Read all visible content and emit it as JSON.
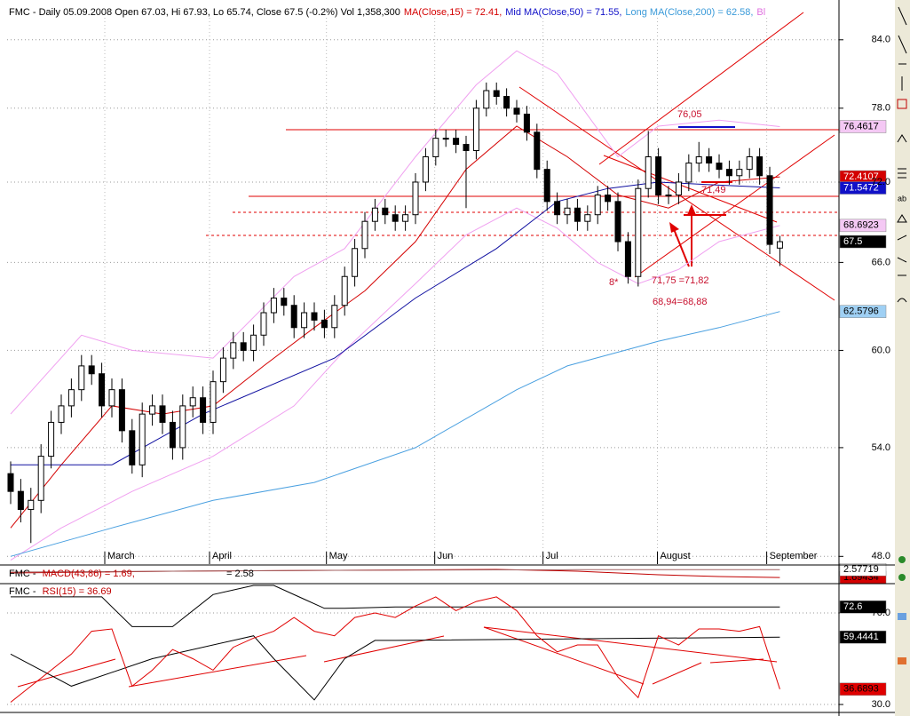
{
  "chart_data": [
    {
      "type": "candlestick",
      "title_parts": [
        {
          "text": "FMC - Daily 05.09.2008 Open 67.03, Hi 67.93, Lo 65.74, Close 67.5 (-0.2%) Vol 1,358,300",
          "color": "#000000"
        },
        {
          "text": "MA(Close,15) = 72.41,",
          "color": "#d40000"
        },
        {
          "text": "Mid MA(Close,50) = 71.55,",
          "color": "#1010c8"
        },
        {
          "text": "Long MA(Close,200) = 62.58,",
          "color": "#3a9ad9"
        },
        {
          "text": "Bl",
          "color": "#e070e0"
        }
      ],
      "log": true,
      "grid": true,
      "xlim": [
        -0.35,
        81.84
      ],
      "ylim": [
        47.6,
        87.7
      ],
      "yticks": [
        {
          "value": 48,
          "label": "48.0"
        },
        {
          "value": 54,
          "label": "54.0"
        },
        {
          "value": 60,
          "label": "60.0"
        },
        {
          "value": 66,
          "label": "66.0"
        },
        {
          "value": 72,
          "label": "72.0"
        },
        {
          "value": 78,
          "label": "78.0"
        },
        {
          "value": 84,
          "label": "84.0"
        }
      ],
      "xticks": [
        {
          "value": 9.3,
          "label": "March"
        },
        {
          "value": 19.65,
          "label": "April"
        },
        {
          "value": 31.2,
          "label": "May"
        },
        {
          "value": 41.9,
          "label": "Jun"
        },
        {
          "value": 52.6,
          "label": "Jul"
        },
        {
          "value": 63.9,
          "label": "August"
        },
        {
          "value": 74.7,
          "label": "September"
        }
      ],
      "candles": {
        "up_color": "#ffffff",
        "down_color": "#000000",
        "label_bg": "#000000",
        "label_fg": "#ffffff",
        "open": [
          52.5,
          51.5,
          50.5,
          51.0,
          53.5,
          55.5,
          56.5,
          57.5,
          59.0,
          58.5,
          56.5,
          57.5,
          55.0,
          53.0,
          56.0,
          56.5,
          55.5,
          54.0,
          56.5,
          57.0,
          55.5,
          58.0,
          59.5,
          60.5,
          60.0,
          61.0,
          62.5,
          63.5,
          63.0,
          61.5,
          62.5,
          62.0,
          61.5,
          63.0,
          65.0,
          67.0,
          69.0,
          70.0,
          69.5,
          69.0,
          69.5,
          72.0,
          74.0,
          75.5,
          75.5,
          75.0,
          74.5,
          78.0,
          79.5,
          79.0,
          78.0,
          77.5,
          76.0,
          73.0,
          70.5,
          69.5,
          70.0,
          69.0,
          69.5,
          71.0,
          70.5,
          67.5,
          65.0,
          71.5,
          74.0,
          71.0,
          71.0,
          72.0,
          73.5,
          74.0,
          73.5,
          73.0,
          72.5,
          73.0,
          74.0,
          72.5,
          67.03
        ],
        "high": [
          53.2,
          52.2,
          51.7,
          54.2,
          56.2,
          57.2,
          58.2,
          59.7,
          59.7,
          59.2,
          58.2,
          58.2,
          55.7,
          56.7,
          57.2,
          57.2,
          56.2,
          57.2,
          57.7,
          57.7,
          58.7,
          60.2,
          61.2,
          61.2,
          61.7,
          63.2,
          64.2,
          64.2,
          63.7,
          63.2,
          63.2,
          62.7,
          63.7,
          65.7,
          67.7,
          69.7,
          70.7,
          70.7,
          70.2,
          70.2,
          72.7,
          74.7,
          76.2,
          76.2,
          76.2,
          75.7,
          78.7,
          80.2,
          80.2,
          79.7,
          78.7,
          78.2,
          76.7,
          73.7,
          71.2,
          70.7,
          70.7,
          70.2,
          71.7,
          71.7,
          71.2,
          68.2,
          72.2,
          76.1,
          74.7,
          71.7,
          72.7,
          74.2,
          75.2,
          74.7,
          74.2,
          73.7,
          73.7,
          74.7,
          74.7,
          73.2,
          67.93
        ],
        "low": [
          50.8,
          49.8,
          48.7,
          50.3,
          52.8,
          54.8,
          55.8,
          56.8,
          57.8,
          55.8,
          55.8,
          54.3,
          52.5,
          52.3,
          55.3,
          54.8,
          53.3,
          53.3,
          55.8,
          54.8,
          54.8,
          57.3,
          58.8,
          59.3,
          59.3,
          60.3,
          61.8,
          62.3,
          60.8,
          60.8,
          61.3,
          60.8,
          60.8,
          62.3,
          64.3,
          66.3,
          68.3,
          68.8,
          68.3,
          68.3,
          68.8,
          71.3,
          73.3,
          74.8,
          74.3,
          70.0,
          73.8,
          77.3,
          78.3,
          77.3,
          76.8,
          75.3,
          72.3,
          69.8,
          68.8,
          68.8,
          68.3,
          68.3,
          68.8,
          69.8,
          66.8,
          64.5,
          64.3,
          70.8,
          70.3,
          70.3,
          70.3,
          71.3,
          72.8,
          72.8,
          72.3,
          71.8,
          71.8,
          72.3,
          71.8,
          66.6,
          65.74
        ],
        "close": [
          51.5,
          50.5,
          51.0,
          53.5,
          55.5,
          56.5,
          57.5,
          59.0,
          58.5,
          56.5,
          57.5,
          55.0,
          53.0,
          56.0,
          56.5,
          55.5,
          54.0,
          56.5,
          57.0,
          55.5,
          58.0,
          59.5,
          60.5,
          60.0,
          61.0,
          62.5,
          63.5,
          63.0,
          61.5,
          62.5,
          62.0,
          61.5,
          63.0,
          65.0,
          67.0,
          69.0,
          70.0,
          69.5,
          69.0,
          69.5,
          72.0,
          74.0,
          75.5,
          75.5,
          75.0,
          74.5,
          78.0,
          79.5,
          79.0,
          78.0,
          77.5,
          76.0,
          73.0,
          70.5,
          69.5,
          70.0,
          69.0,
          69.5,
          71.0,
          70.5,
          67.5,
          65.0,
          71.5,
          74.0,
          71.0,
          71.0,
          72.0,
          73.5,
          74.0,
          73.5,
          73.0,
          72.5,
          73.0,
          74.0,
          72.5,
          67.3,
          67.5
        ]
      },
      "series": [
        {
          "color": "#f0a0f0",
          "label_bg": "#f4c8f4",
          "label_fg": "#000000",
          "x": [
            0,
            7,
            12,
            20,
            28,
            33,
            40,
            46,
            50,
            54,
            60,
            64,
            70,
            76
          ],
          "values": [
            56,
            61,
            60,
            59.5,
            65,
            67,
            74,
            80,
            83,
            81,
            74,
            76.5,
            77,
            76.4617
          ]
        },
        {
          "color": "#f0a0f0",
          "label_bg": "#f4c8f4",
          "label_fg": "#000000",
          "x": [
            0,
            5,
            12,
            20,
            28,
            33,
            40,
            45,
            50,
            54,
            58,
            62,
            66,
            70,
            76
          ],
          "values": [
            47.8,
            49.5,
            51.5,
            53.5,
            56.5,
            60,
            64.5,
            68,
            70,
            68.5,
            66,
            64.5,
            65.5,
            67.5,
            68.6923
          ]
        },
        {
          "color": "#d40000",
          "label_bg": "#d40000",
          "label_fg": "#ffffff",
          "x": [
            0,
            5,
            10,
            15,
            20,
            25,
            30,
            35,
            40,
            45,
            50,
            55,
            60,
            65,
            70,
            76
          ],
          "values": [
            49.5,
            53,
            56.5,
            56,
            56.5,
            59,
            61.5,
            64,
            67.5,
            73,
            76.5,
            74,
            71,
            70,
            72,
            72.4107
          ]
        },
        {
          "color": "#1010a0",
          "label_bg": "#1010c8",
          "label_fg": "#ffffff",
          "x": [
            0,
            10,
            19,
            32,
            40,
            48,
            54,
            59,
            64,
            69,
            76
          ],
          "values": [
            53,
            53,
            56,
            59.5,
            63.5,
            67,
            70.5,
            71.5,
            72,
            71.8,
            71.5472
          ]
        },
        {
          "color": "#4aa0e0",
          "label_bg": "#9fd0f4",
          "label_fg": "#000000",
          "x": [
            0,
            10,
            20,
            30,
            40,
            50,
            55,
            64,
            70,
            76
          ],
          "values": [
            48,
            49.5,
            51,
            52,
            54,
            57.5,
            59,
            60.6,
            61.5,
            62.5796
          ]
        }
      ],
      "annotations": [
        "76,05",
        "71,49",
        "8*",
        "71,75 =71,82",
        "68,94=68,88"
      ]
    },
    {
      "type": "line",
      "title_parts": [
        {
          "text": "FMC - ",
          "color": "#000000"
        },
        {
          "text": "MACD(43,86) = 1.69,",
          "color": "#c00000"
        },
        {
          "text": "= 2.58",
          "color": "#000000"
        }
      ],
      "xlim": [
        -0.35,
        81.84
      ],
      "ylim": [
        1.0,
        3.0
      ],
      "series": [
        {
          "color": "#c00000",
          "label_bg": "#d40000",
          "label_fg": "#000000",
          "x": [
            0,
            8,
            16,
            24,
            32,
            40,
            48,
            56,
            64,
            70,
            76
          ],
          "values": [
            2.2,
            2.3,
            2.4,
            2.45,
            2.5,
            2.55,
            2.6,
            2.4,
            2.0,
            1.8,
            1.69434
          ]
        },
        {
          "color": "#a06060",
          "label_bg": "#ffffff",
          "label_fg": "#000000",
          "x": [
            0,
            8,
            16,
            24,
            32,
            40,
            48,
            56,
            64,
            70,
            76
          ],
          "values": [
            2.3,
            2.35,
            2.4,
            2.45,
            2.5,
            2.52,
            2.55,
            2.57,
            2.58,
            2.58,
            2.57719
          ]
        }
      ]
    },
    {
      "type": "line",
      "title_parts": [
        {
          "text": "FMC - ",
          "color": "#000000"
        },
        {
          "text": "RSI(15) = 36.69",
          "color": "#c00000"
        }
      ],
      "xlim": [
        -0.35,
        81.84
      ],
      "ylim": [
        27.3,
        82.4
      ],
      "yticks": [
        {
          "value": 30,
          "label": "30.0"
        },
        {
          "value": 70,
          "label": "70.0"
        }
      ],
      "series": [
        {
          "color": "#000000",
          "label_bg": "#000000",
          "label_fg": "#ffffff",
          "x": [
            0,
            9,
            12,
            16,
            20,
            24,
            26,
            29,
            31,
            33,
            38,
            76
          ],
          "values": [
            77,
            77,
            64,
            64,
            78,
            82,
            82,
            76,
            72,
            72,
            72.6,
            72.6
          ]
        },
        {
          "color": "#000000",
          "label_bg": "#000000",
          "label_fg": "#ffffff",
          "x": [
            0,
            6,
            14,
            24,
            26,
            30,
            33,
            36,
            38,
            76
          ],
          "values": [
            52,
            38,
            50,
            60,
            50,
            32,
            50,
            58,
            58,
            59.4441
          ]
        },
        {
          "color": "#e00000",
          "label_bg": "#e00000",
          "label_fg": "#000000",
          "x": [
            0,
            2,
            4,
            6,
            8,
            10,
            12,
            14,
            16,
            18,
            20,
            22,
            24,
            26,
            28,
            30,
            32,
            34,
            36,
            38,
            40,
            42,
            44,
            46,
            48,
            50,
            52,
            54,
            56,
            58,
            60,
            62,
            64,
            66,
            68,
            70,
            72,
            74,
            76
          ],
          "values": [
            31,
            38,
            45,
            52,
            62,
            63,
            38,
            45,
            54,
            50,
            45,
            55,
            59,
            62,
            68,
            62,
            60,
            68,
            70,
            68,
            73,
            77,
            71,
            75,
            77,
            71,
            60,
            53,
            56,
            56,
            42,
            33,
            60,
            56,
            63,
            63,
            62,
            64,
            36.6893
          ]
        }
      ]
    }
  ]
}
